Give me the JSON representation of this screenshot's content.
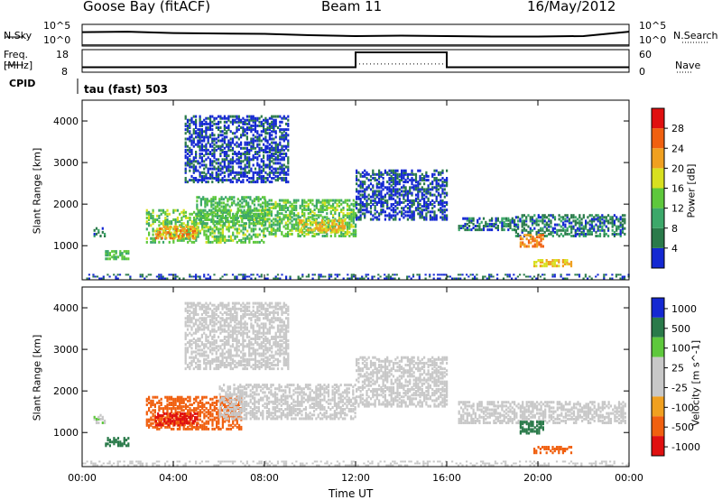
{
  "header": {
    "station": "Goose Bay (fitACF)",
    "beam": "Beam 11",
    "date": "16/May/2012"
  },
  "side_labels": {
    "nsky": "N.Sky",
    "nsky_top": "10^5",
    "nsky_bottom": "10^0",
    "nsearch": "N.Search",
    "nsearch_top": "10^5",
    "nsearch_bottom": "10^0",
    "freq": "Freq.",
    "freq_unit": "[MHz]",
    "freq_top": "18",
    "freq_bottom": "8",
    "nave": "Nave",
    "nave_top": "60",
    "nave_bottom": "0",
    "cpid": "CPID",
    "cpid_value": "tau (fast) 503"
  },
  "colors": {
    "power": [
      "#1428d2",
      "#2a7a4a",
      "#3ca86a",
      "#5ec83c",
      "#d8e020",
      "#f0a020",
      "#f06010",
      "#e01010"
    ],
    "velocity": [
      "#e01010",
      "#f06010",
      "#f0a020",
      "#c8c8c8",
      "#c8c8c8",
      "#5ec83c",
      "#2a7a4a",
      "#1428d2"
    ]
  },
  "chart_data": [
    {
      "type": "line",
      "title": "",
      "series": [
        {
          "name": "N.Sky",
          "x": [
            0,
            2,
            4,
            6,
            8,
            10,
            12,
            14,
            16,
            18,
            20,
            22,
            24
          ],
          "values": [
            3.2,
            3.3,
            3.0,
            2.9,
            2.8,
            2.5,
            2.3,
            2.4,
            2.3,
            2.2,
            2.2,
            2.3,
            3.3
          ]
        },
        {
          "name": "N.Search",
          "x": [
            0,
            2,
            4,
            6,
            8,
            10,
            12,
            14,
            16,
            18,
            20,
            22,
            24
          ],
          "values": [
            0.05,
            0.05,
            0.05,
            0.05,
            0.05,
            0.05,
            0.05,
            0.05,
            0.05,
            0.05,
            0.05,
            0.05,
            0.05
          ]
        }
      ],
      "xlim": [
        0,
        24
      ],
      "ylim": [
        0,
        5
      ],
      "log_scale": true
    },
    {
      "type": "line",
      "title": "",
      "series": [
        {
          "name": "Freq.",
          "x": [
            0,
            12,
            12,
            16,
            16,
            24
          ],
          "values": [
            10.2,
            10.2,
            16.8,
            16.8,
            10.2,
            10.2
          ]
        },
        {
          "name": "Nave",
          "x": [
            12,
            16
          ],
          "values": [
            22,
            22
          ]
        }
      ],
      "xlim": [
        0,
        24
      ],
      "ylim_left": [
        8,
        18
      ],
      "ylim_right": [
        0,
        60
      ]
    },
    {
      "type": "heatmap",
      "title": "",
      "xlabel": "",
      "ylabel": "Slant Range [km]",
      "colorbar_label": "Power [dB]",
      "colorbar_ticks": [
        "4",
        "8",
        "12",
        "16",
        "20",
        "24",
        "28"
      ],
      "y_ticks": [
        "1000",
        "2000",
        "3000",
        "4000"
      ],
      "xlim": [
        0,
        24
      ],
      "ylim": [
        180,
        4500
      ],
      "regions": [
        {
          "t0": 0.5,
          "t1": 1.0,
          "r0": 1200,
          "r1": 1400,
          "value": 8
        },
        {
          "t0": 1.0,
          "t1": 2.0,
          "r0": 650,
          "r1": 850,
          "value": 14
        },
        {
          "t0": 2.8,
          "t1": 8.0,
          "r0": 1050,
          "r1": 1850,
          "value": 16
        },
        {
          "t0": 3.2,
          "t1": 5.0,
          "r0": 1150,
          "r1": 1450,
          "value": 24
        },
        {
          "t0": 5.0,
          "t1": 8.0,
          "r0": 1500,
          "r1": 2150,
          "value": 14
        },
        {
          "t0": 8.0,
          "t1": 12.0,
          "r0": 1200,
          "r1": 2100,
          "value": 15
        },
        {
          "t0": 9.5,
          "t1": 11.5,
          "r0": 1300,
          "r1": 1600,
          "value": 22
        },
        {
          "t0": 4.5,
          "t1": 9.0,
          "r0": 2500,
          "r1": 4100,
          "value": 5
        },
        {
          "t0": 12.0,
          "t1": 16.0,
          "r0": 1600,
          "r1": 2800,
          "value": 5
        },
        {
          "t0": 16.5,
          "t1": 19.0,
          "r0": 1350,
          "r1": 1650,
          "value": 8
        },
        {
          "t0": 19.0,
          "t1": 23.8,
          "r0": 1200,
          "r1": 1700,
          "value": 8
        },
        {
          "t0": 19.2,
          "t1": 20.2,
          "r0": 950,
          "r1": 1250,
          "value": 26
        },
        {
          "t0": 19.8,
          "t1": 21.5,
          "r0": 480,
          "r1": 620,
          "value": 22
        },
        {
          "t0": 0.0,
          "t1": 24.0,
          "r0": 190,
          "r1": 290,
          "value": 6
        }
      ]
    },
    {
      "type": "heatmap",
      "title": "",
      "xlabel": "Time UT",
      "ylabel": "Slant Range [km]",
      "colorbar_label": "Velocity [m s^-1]",
      "colorbar_ticks": [
        "1000",
        "500",
        "100",
        "25",
        "-25",
        "-100",
        "-500",
        "-1000"
      ],
      "x_ticks": [
        "00:00",
        "04:00",
        "08:00",
        "12:00",
        "16:00",
        "20:00",
        "00:00"
      ],
      "y_ticks": [
        "1000",
        "2000",
        "3000",
        "4000"
      ],
      "xlim": [
        0,
        24
      ],
      "ylim": [
        180,
        4500
      ],
      "regions": [
        {
          "t0": 0.5,
          "t1": 1.0,
          "r0": 1200,
          "r1": 1400,
          "value": 10
        },
        {
          "t0": 1.0,
          "t1": 2.0,
          "r0": 650,
          "r1": 850,
          "value": 300
        },
        {
          "t0": 2.8,
          "t1": 7.0,
          "r0": 1050,
          "r1": 1850,
          "value": -300
        },
        {
          "t0": 3.2,
          "t1": 5.0,
          "r0": 1150,
          "r1": 1450,
          "value": -700
        },
        {
          "t0": 6.0,
          "t1": 12.0,
          "r0": 1300,
          "r1": 2150,
          "value": 0
        },
        {
          "t0": 4.5,
          "t1": 9.0,
          "r0": 2500,
          "r1": 4100,
          "value": 0
        },
        {
          "t0": 12.0,
          "t1": 16.0,
          "r0": 1600,
          "r1": 2800,
          "value": 0
        },
        {
          "t0": 16.5,
          "t1": 23.8,
          "r0": 1200,
          "r1": 1700,
          "value": 0
        },
        {
          "t0": 19.2,
          "t1": 20.2,
          "r0": 950,
          "r1": 1250,
          "value": 300
        },
        {
          "t0": 19.8,
          "t1": 21.5,
          "r0": 480,
          "r1": 620,
          "value": -300
        },
        {
          "t0": 0.0,
          "t1": 24.0,
          "r0": 190,
          "r1": 290,
          "value": 0
        }
      ]
    }
  ]
}
